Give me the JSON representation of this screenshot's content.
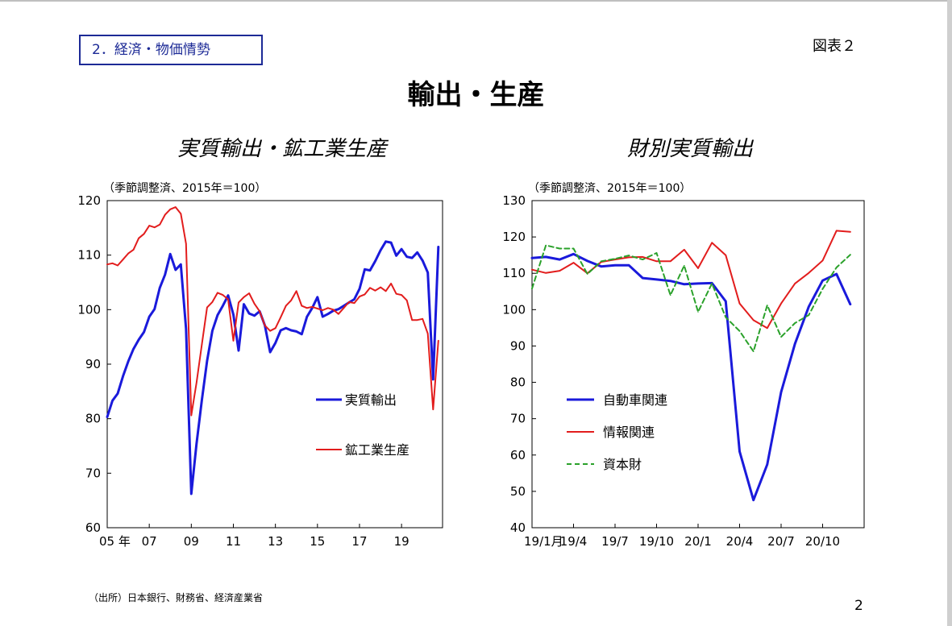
{
  "header": {
    "section_label": "2．経済・物価情勢",
    "figure_label": "図表２",
    "page_title": "輸出・生産"
  },
  "footer": {
    "source": "（出所）日本銀行、財務省、経済産業省",
    "page_number": "2"
  },
  "chart_data": [
    {
      "type": "line",
      "title": "実質輸出・鉱工業生産",
      "unit_note": "（季節調整済、2015年＝100）",
      "ylim": [
        60,
        120
      ],
      "yticks": [
        60,
        70,
        80,
        90,
        100,
        110,
        120
      ],
      "xlim": [
        2005.0,
        2020.95
      ],
      "xticks": [
        {
          "pos": 2005.0,
          "label": "05 年"
        },
        {
          "pos": 2007.0,
          "label": "07"
        },
        {
          "pos": 2009.0,
          "label": "09"
        },
        {
          "pos": 2011.0,
          "label": "11"
        },
        {
          "pos": 2013.0,
          "label": "13"
        },
        {
          "pos": 2015.0,
          "label": "15"
        },
        {
          "pos": 2017.0,
          "label": "17"
        },
        {
          "pos": 2019.0,
          "label": "19"
        }
      ],
      "series": [
        {
          "name": "実質輸出",
          "color": "#1a1adb",
          "dash": "",
          "width": 3,
          "x": [
            2005.0,
            2005.25,
            2005.5,
            2005.75,
            2006.0,
            2006.25,
            2006.5,
            2006.75,
            2007.0,
            2007.25,
            2007.5,
            2007.75,
            2008.0,
            2008.25,
            2008.5,
            2008.75,
            2009.0,
            2009.25,
            2009.5,
            2009.75,
            2010.0,
            2010.25,
            2010.5,
            2010.75,
            2011.0,
            2011.25,
            2011.5,
            2011.75,
            2012.0,
            2012.25,
            2012.5,
            2012.75,
            2013.0,
            2013.25,
            2013.5,
            2013.75,
            2014.0,
            2014.25,
            2014.5,
            2014.75,
            2015.0,
            2015.25,
            2015.5,
            2015.75,
            2016.0,
            2016.25,
            2016.5,
            2016.75,
            2017.0,
            2017.25,
            2017.5,
            2017.75,
            2018.0,
            2018.25,
            2018.5,
            2018.75,
            2019.0,
            2019.25,
            2019.5,
            2019.75,
            2020.0,
            2020.25,
            2020.5,
            2020.75
          ],
          "y": [
            80.3,
            83.3,
            84.6,
            87.8,
            90.5,
            92.8,
            94.5,
            95.9,
            98.7,
            100.1,
            104.0,
            106.4,
            110.2,
            107.3,
            108.3,
            96.5,
            66.2,
            75.4,
            83.4,
            90.6,
            96.1,
            99.0,
            100.7,
            102.6,
            99.1,
            92.5,
            101.0,
            99.3,
            98.9,
            99.7,
            97.1,
            92.2,
            93.9,
            96.2,
            96.6,
            96.2,
            96.0,
            95.5,
            98.7,
            100.3,
            102.3,
            98.7,
            99.2,
            99.8,
            100.1,
            100.7,
            101.3,
            101.9,
            103.8,
            107.4,
            107.2,
            108.9,
            110.9,
            112.5,
            112.3,
            109.9,
            111.1,
            109.7,
            109.5,
            110.5,
            109.0,
            106.8,
            87.2,
            111.5
          ]
        },
        {
          "name": "鉱工業生産",
          "color": "#e21d1d",
          "dash": "",
          "width": 2,
          "x": [
            2005.0,
            2005.25,
            2005.5,
            2005.75,
            2006.0,
            2006.25,
            2006.5,
            2006.75,
            2007.0,
            2007.25,
            2007.5,
            2007.75,
            2008.0,
            2008.25,
            2008.5,
            2008.75,
            2009.0,
            2009.25,
            2009.5,
            2009.75,
            2010.0,
            2010.25,
            2010.5,
            2010.75,
            2011.0,
            2011.25,
            2011.5,
            2011.75,
            2012.0,
            2012.25,
            2012.5,
            2012.75,
            2013.0,
            2013.25,
            2013.5,
            2013.75,
            2014.0,
            2014.25,
            2014.5,
            2014.75,
            2015.0,
            2015.25,
            2015.5,
            2015.75,
            2016.0,
            2016.25,
            2016.5,
            2016.75,
            2017.0,
            2017.25,
            2017.5,
            2017.75,
            2018.0,
            2018.25,
            2018.5,
            2018.75,
            2019.0,
            2019.25,
            2019.5,
            2019.75,
            2020.0,
            2020.25,
            2020.5,
            2020.75
          ],
          "y": [
            108.3,
            108.5,
            108.1,
            109.2,
            110.3,
            111.0,
            113.1,
            113.9,
            115.4,
            115.1,
            115.6,
            117.4,
            118.4,
            118.8,
            117.6,
            112.1,
            80.6,
            86.6,
            93.6,
            100.4,
            101.4,
            103.1,
            102.7,
            101.9,
            94.3,
            101.3,
            102.3,
            103.0,
            101.1,
            99.7,
            97.1,
            96.1,
            96.6,
            98.6,
            100.7,
            101.7,
            103.4,
            100.7,
            100.3,
            100.5,
            100.2,
            99.9,
            100.3,
            100.0,
            99.2,
            100.3,
            101.4,
            101.2,
            102.4,
            102.8,
            104.0,
            103.5,
            104.1,
            103.4,
            104.8,
            102.9,
            102.7,
            101.7,
            98.1,
            98.1,
            98.3,
            95.6,
            81.7,
            94.3
          ]
        }
      ],
      "legend": [
        {
          "label": "実質輸出",
          "series": 0
        },
        {
          "label": "鉱工業生産",
          "series": 1
        }
      ]
    },
    {
      "type": "line",
      "title": "財別実質輸出",
      "unit_note": "（季節調整済、2015年＝100）",
      "ylim": [
        40,
        130
      ],
      "yticks": [
        40,
        50,
        60,
        70,
        80,
        90,
        100,
        110,
        120,
        130
      ],
      "xlim": [
        0,
        24
      ],
      "xticks": [
        {
          "pos": 0,
          "label": "19/1月"
        },
        {
          "pos": 3,
          "label": "19/4"
        },
        {
          "pos": 6,
          "label": "19/7"
        },
        {
          "pos": 9,
          "label": "19/10"
        },
        {
          "pos": 12,
          "label": "20/1"
        },
        {
          "pos": 15,
          "label": "20/4"
        },
        {
          "pos": 18,
          "label": "20/7"
        },
        {
          "pos": 21,
          "label": "20/10"
        }
      ],
      "series": [
        {
          "name": "自動車関連",
          "color": "#1a1adb",
          "dash": "",
          "width": 3,
          "x": [
            0,
            1,
            2,
            3,
            4,
            5,
            6,
            7,
            8,
            9,
            10,
            11,
            12,
            13,
            14,
            15,
            16,
            17,
            18,
            19,
            20,
            21,
            22,
            23
          ],
          "y": [
            114.2,
            114.5,
            113.8,
            115.3,
            113.4,
            111.9,
            112.2,
            112.2,
            108.7,
            108.3,
            107.9,
            107.0,
            107.2,
            107.3,
            102.3,
            61.0,
            47.6,
            57.4,
            77.3,
            90.6,
            100.8,
            108.0,
            109.8,
            101.5
          ]
        },
        {
          "name": "情報関連",
          "color": "#e21d1d",
          "dash": "",
          "width": 2,
          "x": [
            0,
            1,
            2,
            3,
            4,
            5,
            6,
            7,
            8,
            9,
            10,
            11,
            12,
            13,
            14,
            15,
            16,
            17,
            18,
            19,
            20,
            21,
            22,
            23
          ],
          "y": [
            111.0,
            110.1,
            110.7,
            112.9,
            110.0,
            113.1,
            113.8,
            114.4,
            114.5,
            113.3,
            113.3,
            116.5,
            111.4,
            118.4,
            115.0,
            101.7,
            97.1,
            94.9,
            101.7,
            107.2,
            110.1,
            113.5,
            121.7,
            121.4
          ]
        },
        {
          "name": "資本財",
          "color": "#2aa12a",
          "dash": "6,4",
          "width": 2,
          "x": [
            0,
            1,
            2,
            3,
            4,
            5,
            6,
            7,
            8,
            9,
            10,
            11,
            12,
            13,
            14,
            15,
            16,
            17,
            18,
            19,
            20,
            21,
            22,
            23
          ],
          "y": [
            105.8,
            117.7,
            116.8,
            116.8,
            109.8,
            113.3,
            114.0,
            114.9,
            113.8,
            115.6,
            104.0,
            112.1,
            99.4,
            107.2,
            97.9,
            94.1,
            88.5,
            101.2,
            92.5,
            96.3,
            98.5,
            105.7,
            111.6,
            115.1
          ]
        }
      ],
      "legend": [
        {
          "label": "自動車関連",
          "series": 0
        },
        {
          "label": "情報関連",
          "series": 1
        },
        {
          "label": "資本財",
          "series": 2
        }
      ]
    }
  ]
}
